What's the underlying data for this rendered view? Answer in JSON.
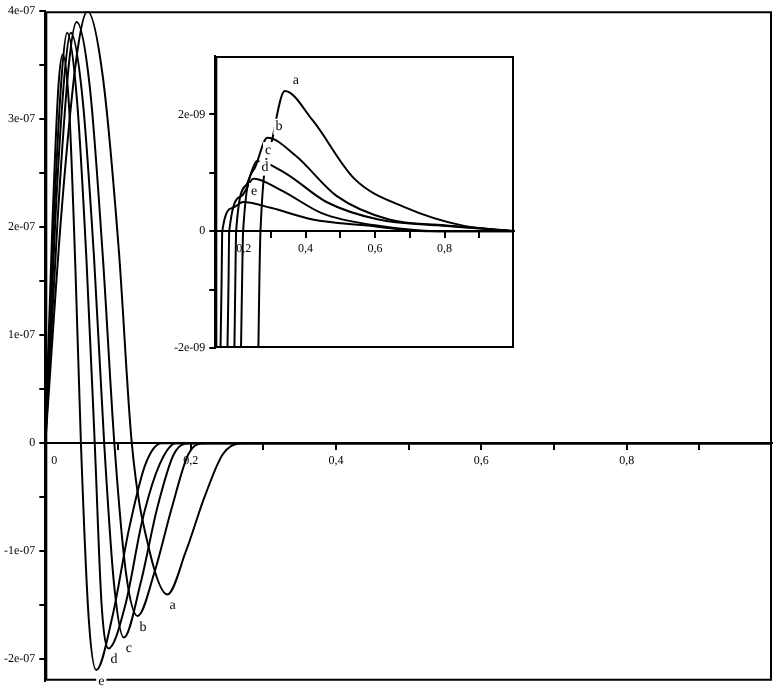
{
  "chart_data": [
    {
      "type": "line",
      "xlim": [
        0,
        1
      ],
      "ylim": [
        -2.2e-07,
        4e-07
      ],
      "xticks": [
        {
          "value": 0,
          "label": "0"
        },
        {
          "value": 0.1,
          "label": null
        },
        {
          "value": 0.2,
          "label": "0,2"
        },
        {
          "value": 0.3,
          "label": null
        },
        {
          "value": 0.4,
          "label": "0,4"
        },
        {
          "value": 0.5,
          "label": null
        },
        {
          "value": 0.6,
          "label": "0,6"
        },
        {
          "value": 0.7,
          "label": null
        },
        {
          "value": 0.8,
          "label": "0,8"
        },
        {
          "value": 0.9,
          "label": null
        }
      ],
      "yticks": [
        {
          "value": -2e-07,
          "label": "-2e-07"
        },
        {
          "value": -1.5e-07,
          "label": null
        },
        {
          "value": -1e-07,
          "label": "-1e-07"
        },
        {
          "value": -5e-08,
          "label": null
        },
        {
          "value": 0,
          "label": "0"
        },
        {
          "value": 5e-08,
          "label": null
        },
        {
          "value": 1e-07,
          "label": "1e-07"
        },
        {
          "value": 1.5e-07,
          "label": null
        },
        {
          "value": 2e-07,
          "label": "2e-07"
        },
        {
          "value": 2.5e-07,
          "label": null
        },
        {
          "value": 3e-07,
          "label": "3e-07"
        },
        {
          "value": 3.5e-07,
          "label": null
        },
        {
          "value": 4e-07,
          "label": "4e-07"
        }
      ],
      "series": [
        {
          "color": "#000000",
          "x": [
            0,
            0.023,
            0.0435,
            0.058,
            0.079,
            0.101,
            0.119,
            0.1435,
            0.168,
            0.1935,
            0.219,
            0.2445,
            0.27,
            0.4,
            0.6,
            1.0
          ],
          "values": [
            0,
            2.2e-07,
            3.6e-07,
            4e-07,
            3.4e-07,
            1.8e-07,
            0,
            -1e-07,
            -1.4e-07,
            -1e-07,
            -5e-08,
            -1e-08,
            0,
            0,
            0,
            0
          ]
        },
        {
          "color": "#000000",
          "x": [
            0,
            0.0172,
            0.0323,
            0.043,
            0.0612,
            0.0794,
            0.095,
            0.111,
            0.127,
            0.15,
            0.174,
            0.197,
            0.22,
            0.4,
            0.6,
            1.0
          ],
          "values": [
            0,
            2.1e-07,
            3.5e-07,
            3.9e-07,
            3.3e-07,
            1.7e-07,
            0,
            -1.2e-07,
            -1.6e-07,
            -1.2e-07,
            -6e-08,
            -1e-08,
            0,
            0,
            0,
            0
          ]
        },
        {
          "color": "#000000",
          "x": [
            0,
            0.014,
            0.0263,
            0.035,
            0.0511,
            0.0672,
            0.081,
            0.0945,
            0.108,
            0.131,
            0.154,
            0.177,
            0.2,
            0.4,
            0.6,
            1.0
          ],
          "values": [
            0,
            2.1e-07,
            3.4e-07,
            3.8e-07,
            3.2e-07,
            1.7e-07,
            0,
            -1.3e-07,
            -1.8e-07,
            -1.3e-07,
            -6e-08,
            -1e-08,
            0,
            0,
            0,
            0
          ]
        },
        {
          "color": "#000000",
          "x": [
            0,
            0.012,
            0.0225,
            0.03,
            0.0433,
            0.0566,
            0.068,
            0.0775,
            0.087,
            0.11,
            0.134,
            0.157,
            0.18,
            0.4,
            0.6,
            1.0
          ],
          "values": [
            0,
            2.1e-07,
            3.4e-07,
            3.8e-07,
            3.2e-07,
            1.7e-07,
            0,
            -1.5e-07,
            -1.9e-07,
            -1.5e-07,
            -7e-08,
            -2e-08,
            0,
            0,
            0,
            0
          ]
        },
        {
          "color": "#000000",
          "x": [
            0,
            0.0096,
            0.018,
            0.024,
            0.0328,
            0.0415,
            0.049,
            0.0595,
            0.07,
            0.0925,
            0.115,
            0.1375,
            0.16,
            0.4,
            0.6,
            1.0
          ],
          "values": [
            0,
            2e-07,
            3.3e-07,
            3.6e-07,
            3.1e-07,
            1.6e-07,
            0,
            -1.6e-07,
            -2.1e-07,
            -1.6e-07,
            -8e-08,
            -2e-08,
            0,
            0,
            0,
            0
          ]
        }
      ],
      "annotations": [
        {
          "text": "a",
          "x": 0.168,
          "y": -1.4e-07
        },
        {
          "text": "b",
          "x": 0.127,
          "y": -1.6e-07
        },
        {
          "text": "c",
          "x": 0.108,
          "y": -1.8e-07
        },
        {
          "text": "d",
          "x": 0.087,
          "y": -1.9e-07
        },
        {
          "text": "e",
          "x": 0.07,
          "y": -2.1e-07
        }
      ]
    },
    {
      "type": "line",
      "xlim": [
        0.14,
        1.0
      ],
      "ylim": [
        -2e-09,
        3e-09
      ],
      "xticks": [
        {
          "value": 0.2,
          "label": "0,2"
        },
        {
          "value": 0.3,
          "label": null
        },
        {
          "value": 0.4,
          "label": "0,4"
        },
        {
          "value": 0.5,
          "label": null
        },
        {
          "value": 0.6,
          "label": "0,6"
        },
        {
          "value": 0.7,
          "label": null
        },
        {
          "value": 0.8,
          "label": "0,8"
        },
        {
          "value": 0.9,
          "label": null
        }
      ],
      "yticks": [
        {
          "value": -2e-09,
          "label": "-2e-09"
        },
        {
          "value": -1e-09,
          "label": null
        },
        {
          "value": 0,
          "label": "0"
        },
        {
          "value": 1e-09,
          "label": null
        },
        {
          "value": 2e-09,
          "label": "2e-09"
        }
      ],
      "series": [
        {
          "color": "#000000",
          "x": [
            0.264,
            0.267,
            0.27,
            0.305,
            0.34,
            0.42,
            0.54,
            0.69,
            0.85,
            1.0
          ],
          "values": [
            -2e-09,
            -8e-10,
            0,
            1.6e-09,
            2.4e-09,
            1.9e-09,
            9e-10,
            4e-10,
            1e-10,
            0
          ]
        },
        {
          "color": "#000000",
          "x": [
            0.214,
            0.217,
            0.22,
            0.255,
            0.29,
            0.37,
            0.49,
            0.64,
            0.8,
            1.0
          ],
          "values": [
            -2e-09,
            -9e-10,
            0,
            1.1e-09,
            1.6e-09,
            1.3e-09,
            6e-10,
            2e-10,
            1e-10,
            0
          ]
        },
        {
          "color": "#000000",
          "x": [
            0.195,
            0.1975,
            0.2,
            0.23,
            0.26,
            0.34,
            0.46,
            0.61,
            0.78,
            1.0
          ],
          "values": [
            -2e-09,
            -9e-10,
            0,
            8e-10,
            1.2e-09,
            1e-09,
            5e-10,
            2e-10,
            1e-10,
            0
          ]
        },
        {
          "color": "#000000",
          "x": [
            0.175,
            0.178,
            0.18,
            0.215,
            0.25,
            0.33,
            0.45,
            0.6,
            0.78,
            1.0
          ],
          "values": [
            -2e-09,
            -9e-10,
            0,
            6e-10,
            9e-10,
            7e-10,
            3e-10,
            1e-10,
            0,
            0
          ]
        },
        {
          "color": "#000000",
          "x": [
            0.155,
            0.158,
            0.16,
            0.19,
            0.22,
            0.3,
            0.42,
            0.57,
            0.75,
            1.0
          ],
          "values": [
            -2e-09,
            -9e-10,
            0,
            4e-10,
            5e-10,
            4e-10,
            2e-10,
            1e-10,
            0,
            0
          ]
        }
      ],
      "annotations": [
        {
          "text": "a",
          "x": 0.34,
          "y": 2.4e-09
        },
        {
          "text": "b",
          "x": 0.29,
          "y": 1.6e-09
        },
        {
          "text": "c",
          "x": 0.26,
          "y": 1.2e-09
        },
        {
          "text": "d",
          "x": 0.25,
          "y": 9e-10
        },
        {
          "text": "e",
          "x": 0.22,
          "y": 5e-10
        }
      ]
    }
  ]
}
